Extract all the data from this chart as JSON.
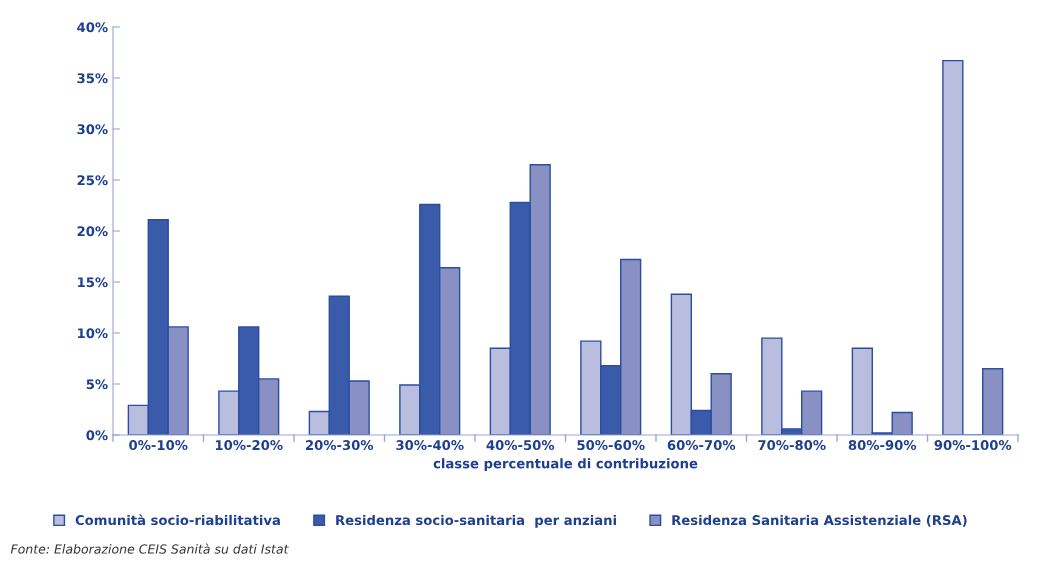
{
  "chart_data": {
    "type": "bar",
    "xlabel": "classe percentuale di contribuzione",
    "categories": [
      "0%-10%",
      "10%-20%",
      "20%-30%",
      "30%-40%",
      "40%-50%",
      "50%-60%",
      "60%-70%",
      "70%-80%",
      "80%-90%",
      "90%-100%"
    ],
    "series": [
      {
        "name": "Comunità socio-riabilitativa",
        "color": "#b9bedf",
        "values": [
          2.9,
          4.3,
          2.3,
          4.9,
          8.5,
          9.2,
          13.8,
          9.5,
          8.5,
          36.7
        ]
      },
      {
        "name": "Residenza socio-sanitaria  per anziani",
        "color": "#3a5aaa",
        "values": [
          21.1,
          10.6,
          13.6,
          22.6,
          22.8,
          6.8,
          2.4,
          0.6,
          0.2,
          0
        ]
      },
      {
        "name": "Residenza Sanitaria Assistenziale (RSA)",
        "color": "#8890c4",
        "values": [
          10.6,
          5.5,
          5.3,
          16.4,
          26.5,
          17.2,
          6.0,
          4.3,
          2.2,
          6.5
        ]
      }
    ],
    "ylim": [
      0,
      40
    ],
    "yticks": [
      {
        "value": 0,
        "label": "0%"
      },
      {
        "value": 5,
        "label": "5%"
      },
      {
        "value": 10,
        "label": "10%"
      },
      {
        "value": 15,
        "label": "15%"
      },
      {
        "value": 20,
        "label": "20%"
      },
      {
        "value": 25,
        "label": "25%"
      },
      {
        "value": 30,
        "label": "30%"
      },
      {
        "value": 35,
        "label": "35%"
      },
      {
        "value": 40,
        "label": "40%"
      }
    ],
    "grid": false,
    "legend": "bottom",
    "annotations": [
      "Fonte: Elaborazione CEIS Sanità su dati Istat"
    ]
  }
}
